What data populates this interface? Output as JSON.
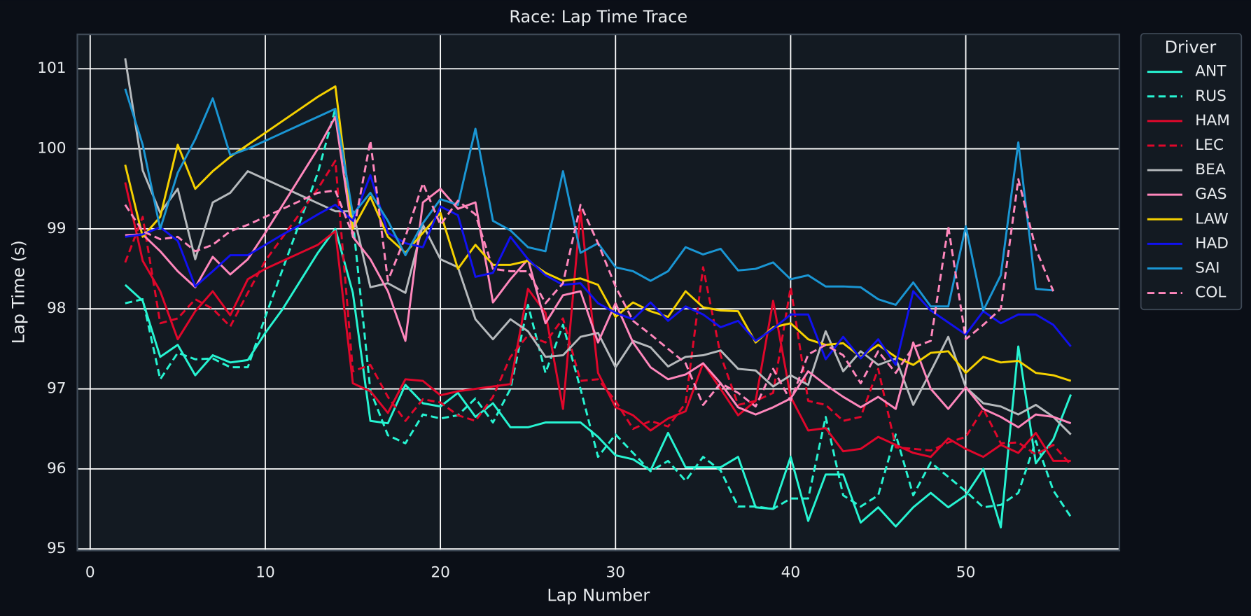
{
  "chart_data": {
    "type": "line",
    "title": "Race: Lap Time Trace",
    "x_label": "Lap Number",
    "y_label": "Lap Time (s)",
    "legend_title": "Driver",
    "legend_position": "outside-right",
    "grid": true,
    "xlim": [
      -0.73,
      58.77
    ],
    "ylim": [
      94.98,
      101.43
    ],
    "xticks": [
      0,
      10,
      20,
      30,
      40,
      50
    ],
    "yticks": [
      95,
      96,
      97,
      98,
      99,
      100,
      101
    ],
    "x": [
      2,
      3,
      4,
      5,
      6,
      7,
      8,
      9,
      10,
      11,
      12,
      13,
      14,
      15,
      16,
      17,
      18,
      19,
      20,
      21,
      22,
      23,
      24,
      25,
      26,
      27,
      28,
      29,
      30,
      31,
      32,
      33,
      34,
      35,
      36,
      37,
      38,
      39,
      40,
      41,
      42,
      43,
      44,
      45,
      46,
      47,
      48,
      49,
      50,
      51,
      52,
      53,
      54,
      55,
      56
    ],
    "series": [
      {
        "name": "ANT",
        "color": "#27f4d2",
        "linestyle": "solid",
        "values": [
          98.3,
          98.1,
          97.4,
          97.55,
          97.17,
          97.42,
          97.33,
          97.36,
          97.7,
          98.0,
          98.35,
          98.7,
          99.0,
          98.2,
          96.6,
          96.57,
          97.05,
          96.82,
          96.78,
          96.95,
          96.65,
          96.82,
          96.52,
          96.52,
          96.58,
          96.58,
          96.58,
          96.4,
          96.17,
          96.12,
          95.98,
          96.45,
          96.02,
          96.02,
          96.02,
          96.15,
          95.52,
          95.5,
          96.15,
          95.35,
          95.93,
          95.93,
          95.33,
          95.52,
          95.28,
          95.52,
          95.7,
          95.52,
          95.67,
          96.0,
          95.27,
          97.53,
          96.07,
          96.37,
          96.93
        ]
      },
      {
        "name": "RUS",
        "color": "#27f4d2",
        "linestyle": "dashed",
        "values": [
          98.07,
          98.12,
          97.12,
          97.45,
          97.37,
          97.38,
          97.27,
          97.27,
          97.9,
          98.5,
          99.1,
          99.7,
          100.5,
          99.1,
          96.98,
          96.42,
          96.32,
          96.68,
          96.63,
          96.67,
          96.88,
          96.58,
          97.0,
          98.05,
          97.2,
          97.8,
          97.0,
          96.15,
          96.43,
          96.2,
          95.97,
          96.1,
          95.85,
          96.15,
          95.98,
          95.53,
          95.53,
          95.5,
          95.63,
          95.63,
          96.65,
          95.67,
          95.53,
          95.67,
          96.43,
          95.67,
          96.08,
          95.9,
          95.72,
          95.52,
          95.55,
          95.7,
          96.35,
          95.73,
          95.4
        ]
      },
      {
        "name": "HAM",
        "color": "#e0072b",
        "linestyle": "solid",
        "values": [
          99.58,
          98.6,
          98.22,
          97.62,
          97.97,
          98.22,
          97.92,
          98.37,
          98.5,
          98.6,
          98.7,
          98.8,
          98.97,
          97.07,
          96.97,
          96.7,
          97.12,
          97.1,
          96.92,
          96.97,
          97.0,
          97.03,
          97.06,
          98.25,
          97.95,
          96.75,
          99.23,
          97.2,
          96.77,
          96.67,
          96.48,
          96.63,
          96.72,
          97.32,
          97.0,
          96.67,
          96.85,
          98.1,
          96.9,
          96.48,
          96.51,
          96.22,
          96.25,
          96.4,
          96.3,
          96.2,
          96.15,
          96.38,
          96.25,
          96.15,
          96.3,
          96.2,
          96.45,
          96.1,
          96.1
        ]
      },
      {
        "name": "LEC",
        "color": "#e0072b",
        "linestyle": "dashed",
        "values": [
          98.58,
          99.15,
          97.82,
          97.88,
          98.12,
          98.0,
          97.78,
          98.2,
          98.6,
          98.9,
          99.2,
          99.5,
          99.85,
          97.22,
          97.3,
          96.9,
          96.6,
          96.87,
          96.83,
          96.67,
          96.6,
          96.9,
          97.4,
          97.67,
          97.58,
          97.88,
          97.1,
          97.12,
          96.85,
          96.5,
          96.6,
          96.53,
          96.82,
          98.52,
          97.42,
          96.8,
          96.85,
          96.95,
          98.27,
          96.85,
          96.8,
          96.6,
          96.65,
          97.25,
          96.27,
          96.25,
          96.23,
          96.33,
          96.4,
          96.75,
          96.32,
          96.33,
          96.18,
          96.3,
          96.05
        ]
      },
      {
        "name": "BEA",
        "color": "#b6babd",
        "linestyle": "solid",
        "values": [
          101.13,
          99.73,
          99.2,
          99.5,
          98.62,
          99.33,
          99.45,
          99.72,
          99.62,
          99.52,
          99.42,
          99.32,
          99.22,
          99.22,
          98.27,
          98.32,
          98.2,
          99.05,
          98.62,
          98.52,
          97.87,
          97.62,
          97.87,
          97.72,
          97.4,
          97.42,
          97.65,
          97.7,
          97.27,
          97.6,
          97.52,
          97.28,
          97.4,
          97.42,
          97.48,
          97.25,
          97.23,
          97.03,
          97.17,
          97.05,
          97.72,
          97.22,
          97.47,
          97.3,
          97.38,
          96.8,
          97.22,
          97.65,
          97.02,
          96.82,
          96.78,
          96.68,
          96.8,
          96.65,
          96.43
        ]
      },
      {
        "name": "GAS",
        "color": "#ff87bc",
        "linestyle": "solid",
        "values": [
          98.92,
          98.93,
          98.72,
          98.47,
          98.27,
          98.65,
          98.43,
          98.62,
          98.95,
          99.3,
          99.65,
          100.0,
          100.4,
          98.9,
          98.62,
          98.22,
          97.6,
          99.33,
          99.5,
          99.25,
          99.33,
          98.08,
          98.37,
          98.62,
          97.82,
          98.17,
          98.22,
          97.58,
          98.07,
          97.58,
          97.27,
          97.12,
          97.18,
          97.32,
          97.07,
          96.77,
          96.68,
          96.77,
          96.88,
          97.22,
          97.05,
          96.9,
          96.77,
          96.9,
          96.75,
          97.58,
          97.0,
          96.75,
          97.02,
          96.75,
          96.65,
          96.52,
          96.68,
          96.65,
          96.57
        ]
      },
      {
        "name": "LAW",
        "color": "#f5d100",
        "linestyle": "solid",
        "values": [
          99.8,
          98.9,
          99.15,
          100.05,
          99.5,
          99.72,
          99.9,
          100.05,
          100.2,
          100.35,
          100.5,
          100.65,
          100.78,
          99.0,
          99.4,
          98.9,
          98.7,
          98.95,
          99.2,
          98.5,
          98.8,
          98.55,
          98.55,
          98.6,
          98.45,
          98.35,
          98.38,
          98.3,
          97.9,
          98.08,
          97.97,
          97.9,
          98.22,
          98.02,
          97.98,
          97.97,
          97.58,
          97.77,
          97.82,
          97.62,
          97.55,
          97.57,
          97.4,
          97.55,
          97.4,
          97.3,
          97.45,
          97.47,
          97.2,
          97.4,
          97.33,
          97.35,
          97.2,
          97.17,
          97.1
        ]
      },
      {
        "name": "HAD",
        "color": "#1111f0",
        "linestyle": "solid",
        "values": [
          98.9,
          98.93,
          99.02,
          98.85,
          98.28,
          98.47,
          98.67,
          98.67,
          98.8,
          98.93,
          99.05,
          99.18,
          99.3,
          99.1,
          99.67,
          98.95,
          98.82,
          98.77,
          99.28,
          99.17,
          98.4,
          98.45,
          98.9,
          98.62,
          98.42,
          98.3,
          98.32,
          98.07,
          97.95,
          97.87,
          98.08,
          97.85,
          98.03,
          97.93,
          97.77,
          97.85,
          97.6,
          97.75,
          97.93,
          97.93,
          97.37,
          97.65,
          97.38,
          97.62,
          97.3,
          98.22,
          97.98,
          97.83,
          97.68,
          97.97,
          97.82,
          97.93,
          97.93,
          97.8,
          97.53
        ]
      },
      {
        "name": "SAI",
        "color": "#1a96d4",
        "linestyle": "solid",
        "values": [
          100.75,
          100.05,
          99.0,
          99.7,
          100.12,
          100.63,
          99.92,
          100.0,
          100.1,
          100.2,
          100.3,
          100.4,
          100.5,
          99.18,
          99.45,
          99.1,
          98.67,
          99.07,
          99.37,
          99.3,
          100.25,
          99.1,
          98.98,
          98.77,
          98.72,
          99.72,
          98.7,
          98.82,
          98.52,
          98.47,
          98.35,
          98.47,
          98.77,
          98.68,
          98.75,
          98.48,
          98.5,
          98.58,
          98.37,
          98.42,
          98.28,
          98.28,
          98.27,
          98.12,
          98.05,
          98.33,
          98.03,
          98.03,
          99.03,
          97.98,
          98.42,
          100.08,
          98.25,
          98.23,
          null
        ]
      },
      {
        "name": "COL",
        "color": "#ff87bc",
        "linestyle": "dashed",
        "values": [
          99.3,
          98.97,
          98.87,
          98.9,
          98.72,
          98.8,
          98.97,
          99.05,
          99.15,
          99.25,
          99.35,
          99.45,
          99.48,
          98.92,
          100.1,
          98.35,
          98.9,
          99.57,
          99.05,
          99.35,
          99.18,
          98.5,
          98.47,
          98.47,
          98.07,
          98.32,
          99.3,
          98.82,
          98.28,
          97.85,
          97.68,
          97.5,
          97.32,
          96.8,
          97.07,
          96.95,
          96.78,
          97.25,
          96.85,
          97.43,
          97.55,
          97.42,
          97.07,
          97.47,
          97.2,
          97.52,
          97.6,
          99.03,
          97.62,
          97.8,
          98.0,
          99.62,
          98.75,
          98.22,
          null
        ]
      }
    ]
  }
}
